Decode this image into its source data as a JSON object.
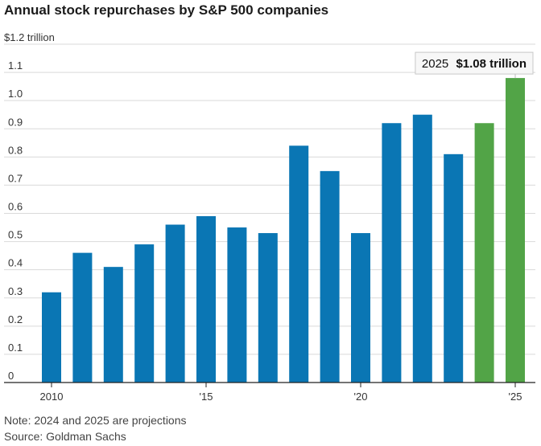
{
  "chart_data": {
    "type": "bar",
    "title": "Annual stock repurchases by S&P 500 companies",
    "y_unit_label": "$1.2 trillion",
    "ylim": [
      0,
      1.2
    ],
    "y_ticks": [
      "0",
      "0.1",
      "0.2",
      "0.3",
      "0.4",
      "0.5",
      "0.6",
      "0.7",
      "0.8",
      "0.9",
      "1.0",
      "1.1"
    ],
    "x_tick_labels": [
      {
        "year": 2010,
        "label": "2010"
      },
      {
        "year": 2015,
        "label": "'15"
      },
      {
        "year": 2020,
        "label": "'20"
      },
      {
        "year": 2025,
        "label": "'25"
      }
    ],
    "categories": [
      2010,
      2011,
      2012,
      2013,
      2014,
      2015,
      2016,
      2017,
      2018,
      2019,
      2020,
      2021,
      2022,
      2023,
      2024,
      2025
    ],
    "values": [
      0.32,
      0.46,
      0.41,
      0.49,
      0.56,
      0.59,
      0.55,
      0.53,
      0.84,
      0.75,
      0.53,
      0.92,
      0.95,
      0.81,
      0.92,
      1.08
    ],
    "projected": [
      false,
      false,
      false,
      false,
      false,
      false,
      false,
      false,
      false,
      false,
      false,
      false,
      false,
      false,
      true,
      true
    ],
    "colors": {
      "actual": "#0a76b4",
      "projection": "#52a447"
    },
    "grid": true,
    "annotation": {
      "year_text": "2025",
      "value_text": "$1.08 trillion"
    }
  },
  "footnote": "Note: 2024 and 2025 are projections",
  "source": "Source: Goldman Sachs"
}
